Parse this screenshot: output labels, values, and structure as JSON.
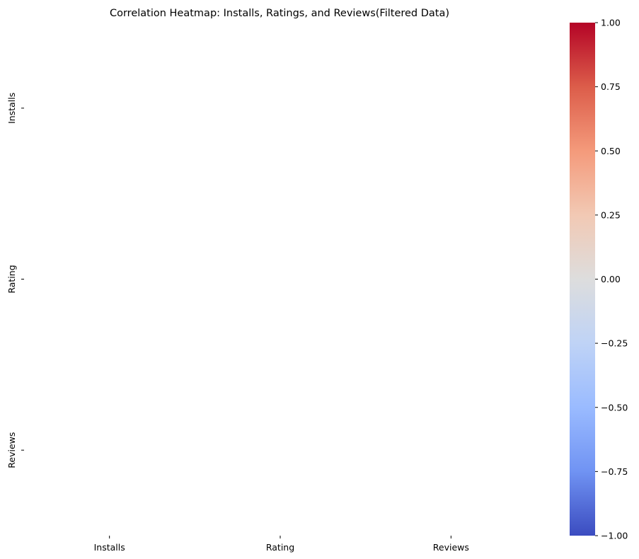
{
  "chart_data": {
    "type": "heatmap",
    "title": "Correlation Heatmap: Installs, Ratings, and Reviews(Filtered Data)",
    "xlabel": "",
    "ylabel": "",
    "x_categories": [
      "Installs",
      "Rating",
      "Reviews"
    ],
    "y_categories": [
      "Installs",
      "Rating",
      "Reviews"
    ],
    "values": [
      [
        null,
        null,
        null
      ],
      [
        null,
        null,
        null
      ],
      [
        null,
        null,
        null
      ]
    ],
    "colorbar": {
      "colormap": "coolwarm",
      "vmin": -1.0,
      "vmax": 1.0,
      "ticks": [
        1.0,
        0.75,
        0.5,
        0.25,
        0.0,
        -0.25,
        -0.5,
        -0.75,
        -1.0
      ],
      "tick_labels": [
        "1.00",
        "0.75",
        "0.50",
        "0.25",
        "0.00",
        "−0.25",
        "−0.50",
        "−0.75",
        "−1.00"
      ],
      "colors": [
        "#b40426",
        "#dc5d4a",
        "#f49a7b",
        "#f2c9b4",
        "#dddddd",
        "#bfd3f6",
        "#9abbff",
        "#7093f3",
        "#3b4cc0"
      ]
    },
    "grid": false,
    "legend": "colorbar-right"
  }
}
